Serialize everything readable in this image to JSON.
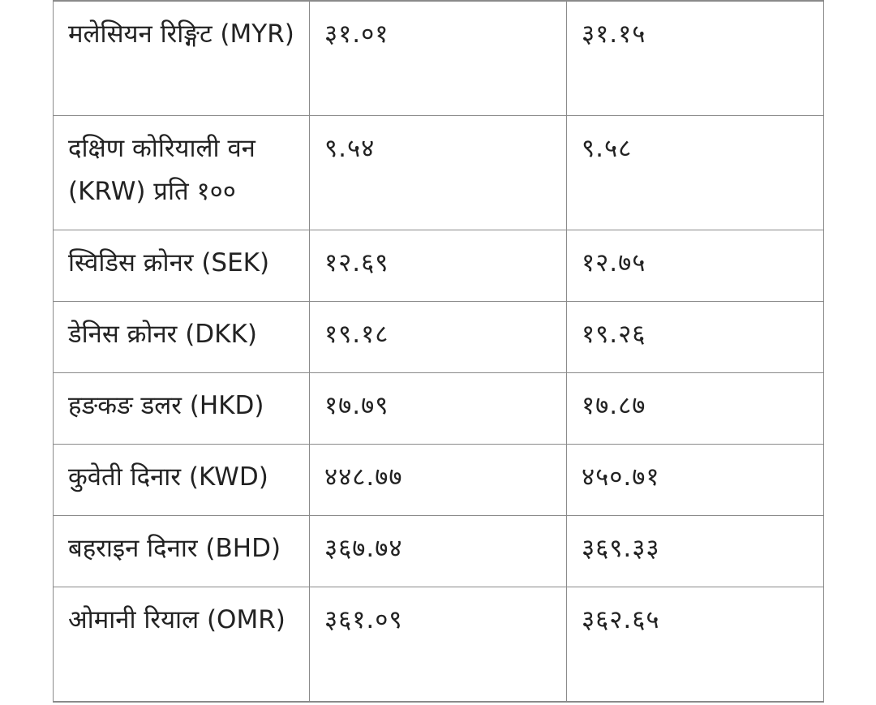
{
  "rows": [
    {
      "currency": "मलेसियन रिङ्गिट (MYR)",
      "buy": "३१.०१",
      "sell": "३१.१५"
    },
    {
      "currency": "दक्षिण कोरियाली वन (KRW) प्रति १००",
      "buy": "९.५४",
      "sell": "९.५८"
    },
    {
      "currency": "स्विडिस क्रोनर (SEK)",
      "buy": "१२.६९",
      "sell": "१२.७५"
    },
    {
      "currency": "डेनिस क्रोनर (DKK)",
      "buy": "१९.१८",
      "sell": "१९.२६"
    },
    {
      "currency": "हङकङ डलर (HKD)",
      "buy": "१७.७९",
      "sell": "१७.८७"
    },
    {
      "currency": "कुवेती दिनार (KWD)",
      "buy": "४४८.७७",
      "sell": "४५०.७१"
    },
    {
      "currency": "बहराइन दिनार (BHD)",
      "buy": "३६७.७४",
      "sell": "३६९.३३"
    },
    {
      "currency": "ओमानी रियाल (OMR)",
      "buy": "३६१.०९",
      "sell": "३६२.६५"
    }
  ]
}
